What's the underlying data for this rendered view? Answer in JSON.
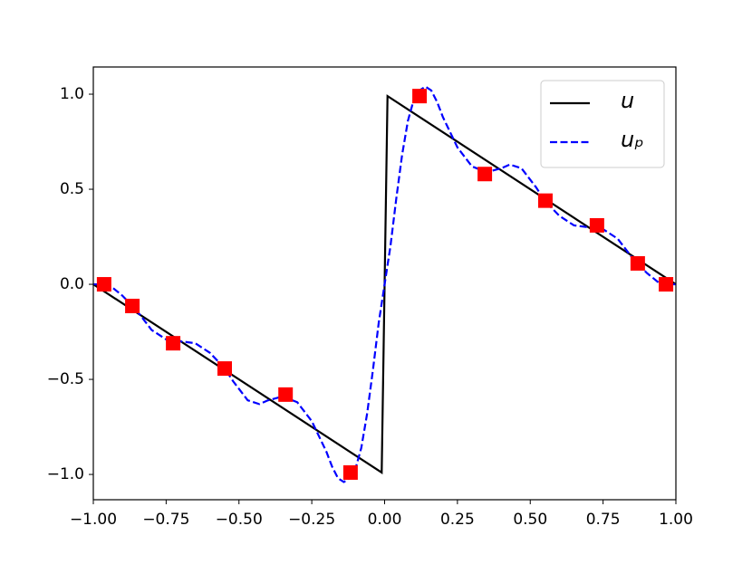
{
  "chart_data": {
    "type": "line",
    "xlim": [
      -1,
      1
    ],
    "ylim": [
      -1.133,
      1.143
    ],
    "xticks": [
      {
        "value": -1,
        "label": "−1.00"
      },
      {
        "value": -0.75,
        "label": "−0.75"
      },
      {
        "value": -0.5,
        "label": "−0.50"
      },
      {
        "value": -0.25,
        "label": "−0.25"
      },
      {
        "value": 0,
        "label": "0.00"
      },
      {
        "value": 0.25,
        "label": "0.25"
      },
      {
        "value": 0.5,
        "label": "0.50"
      },
      {
        "value": 0.75,
        "label": "0.75"
      },
      {
        "value": 1,
        "label": "1.00"
      }
    ],
    "yticks": [
      {
        "value": -1,
        "label": "−1.0"
      },
      {
        "value": -0.5,
        "label": "−0.5"
      },
      {
        "value": 0,
        "label": "0.0"
      },
      {
        "value": 0.5,
        "label": "0.5"
      },
      {
        "value": 1,
        "label": "1.0"
      }
    ],
    "legend": "upper right",
    "series": [
      {
        "name": "u",
        "color": "#000000",
        "style": "solid",
        "x": [
          -1,
          -0.01,
          0.01,
          1
        ],
        "values": [
          0,
          -0.99,
          0.99,
          0
        ]
      },
      {
        "name": "uₚ",
        "color": "#0000ff",
        "style": "dashed",
        "x": [
          -1,
          -0.97,
          -0.94,
          -0.9,
          -0.85,
          -0.8,
          -0.75,
          -0.7,
          -0.65,
          -0.6,
          -0.55,
          -0.52,
          -0.47,
          -0.43,
          -0.4,
          -0.35,
          -0.3,
          -0.25,
          -0.2,
          -0.18,
          -0.16,
          -0.14,
          -0.12,
          -0.1,
          -0.08,
          -0.06,
          -0.04,
          -0.02,
          0,
          0.02,
          0.04,
          0.06,
          0.08,
          0.1,
          0.12,
          0.14,
          0.16,
          0.18,
          0.2,
          0.25,
          0.3,
          0.35,
          0.4,
          0.43,
          0.47,
          0.52,
          0.55,
          0.6,
          0.65,
          0.7,
          0.75,
          0.8,
          0.85,
          0.9,
          0.94,
          0.97,
          1
        ],
        "values": [
          0,
          0,
          -0.01,
          -0.06,
          -0.14,
          -0.24,
          -0.29,
          -0.3,
          -0.31,
          -0.36,
          -0.44,
          -0.51,
          -0.61,
          -0.63,
          -0.61,
          -0.59,
          -0.62,
          -0.72,
          -0.88,
          -0.96,
          -1.02,
          -1.04,
          -1.02,
          -0.97,
          -0.86,
          -0.68,
          -0.45,
          -0.2,
          0,
          0.2,
          0.45,
          0.68,
          0.86,
          0.97,
          1.02,
          1.04,
          1.02,
          0.96,
          0.88,
          0.72,
          0.62,
          0.59,
          0.61,
          0.63,
          0.61,
          0.51,
          0.44,
          0.36,
          0.31,
          0.3,
          0.29,
          0.24,
          0.14,
          0.06,
          0.01,
          0,
          0
        ]
      },
      {
        "color": "#ff0000",
        "marker": "square",
        "x": [
          -0.963,
          -0.866,
          -0.726,
          -0.549,
          -0.34,
          -0.117,
          0.12,
          0.344,
          0.552,
          0.729,
          0.869,
          0.966
        ],
        "values": [
          0,
          -0.114,
          -0.31,
          -0.443,
          -0.58,
          -0.99,
          0.99,
          0.58,
          0.44,
          0.31,
          0.11,
          0
        ]
      }
    ]
  }
}
